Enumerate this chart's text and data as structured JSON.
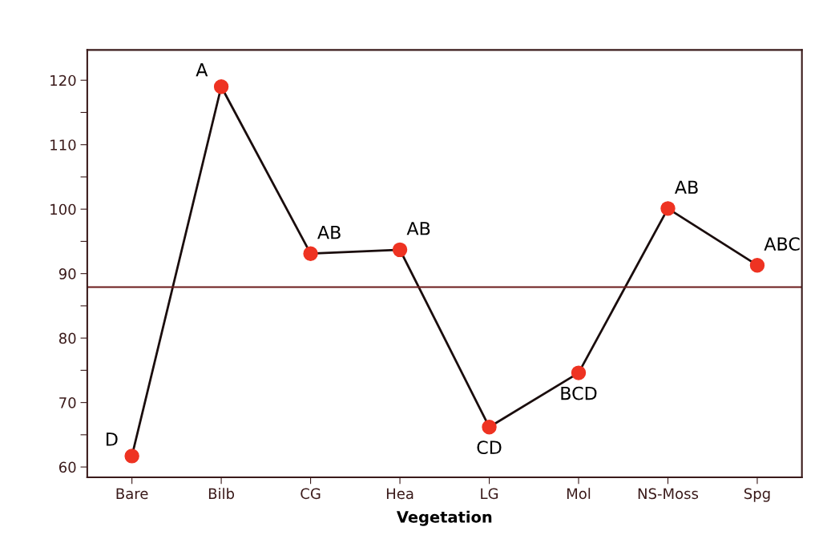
{
  "chart_data": {
    "type": "line",
    "xlabel": "Vegetation",
    "categories": [
      "Bare",
      "Bilb",
      "CG",
      "Hea",
      "LG",
      "Mol",
      "NS-Moss",
      "Spg"
    ],
    "series": [
      {
        "color": "#1a0d0d",
        "colors": [
          "#ee3322",
          "#ee3322",
          "#ee3322",
          "#ee3322",
          "#ee3322",
          "#ee3322",
          "#ee3322",
          "#ee3322"
        ],
        "values": [
          61.7,
          119.0,
          93.1,
          93.7,
          66.2,
          74.6,
          100.1,
          91.3
        ]
      }
    ],
    "marker": "circle",
    "ylim": [
      58.4,
      124.7
    ],
    "yticks": [
      60,
      {
        "value": 65,
        "label": null
      },
      70,
      {
        "value": 75,
        "label": null
      },
      80,
      {
        "value": 85,
        "label": null
      },
      90,
      {
        "value": 95,
        "label": null
      },
      100,
      {
        "value": 105,
        "label": null
      },
      110,
      {
        "value": 115,
        "label": null
      },
      120
    ],
    "ref_lines": [
      {
        "axis": "y",
        "value": 87.9,
        "color": "#6b1a1a"
      }
    ],
    "annotations": [
      {
        "text": "D",
        "x": "Bare",
        "y": 61.7
      },
      {
        "text": "A",
        "x": "Bilb",
        "y": 119.0
      },
      {
        "text": "AB",
        "x": "CG",
        "y": 93.1
      },
      {
        "text": "AB",
        "x": "Hea",
        "y": 93.7
      },
      {
        "text": "CD",
        "x": "LG",
        "y": 66.2
      },
      {
        "text": "BCD",
        "x": "Mol",
        "y": 74.6
      },
      {
        "text": "AB",
        "x": "NS-Moss",
        "y": 100.1
      },
      {
        "text": "ABC",
        "x": "Spg",
        "y": 91.3
      }
    ],
    "grid": false
  }
}
